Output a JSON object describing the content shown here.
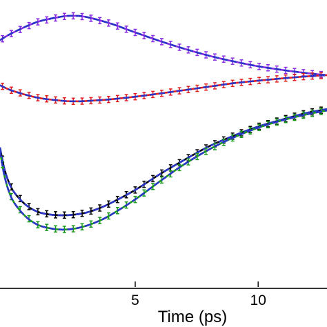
{
  "chart_data": {
    "type": "line",
    "xlabel": "Time (ps)",
    "xlim": [
      -0.5,
      12.8
    ],
    "ylim": [
      0,
      1
    ],
    "x_ticks": [
      {
        "value": 5,
        "label": "5"
      },
      {
        "value": 10,
        "label": "10"
      }
    ],
    "grid": false,
    "legend": "none",
    "series": [
      {
        "color": "#8a2be2",
        "fit_color": "#2a35c8",
        "x": [
          -0.5,
          0,
          1,
          2,
          2.5,
          3,
          4,
          5,
          6,
          7,
          8,
          9,
          10,
          11,
          12,
          12.8
        ],
        "y": [
          0.86,
          0.885,
          0.923,
          0.942,
          0.945,
          0.941,
          0.918,
          0.887,
          0.857,
          0.83,
          0.806,
          0.786,
          0.769,
          0.756,
          0.745,
          0.738
        ]
      },
      {
        "color": "#e02020",
        "fit_color": "#2a35c8",
        "x": [
          -0.5,
          0,
          1,
          2,
          2.5,
          3,
          4,
          5,
          6,
          7,
          8,
          9,
          10,
          11,
          12,
          12.8
        ],
        "y": [
          0.703,
          0.684,
          0.66,
          0.649,
          0.647,
          0.648,
          0.654,
          0.663,
          0.674,
          0.686,
          0.698,
          0.71,
          0.719,
          0.727,
          0.734,
          0.738
        ]
      },
      {
        "color": "#000000",
        "fit_color": "#2a35c8",
        "x": [
          -0.5,
          -0.3,
          0,
          0.5,
          1,
          1.5,
          2,
          2.5,
          3,
          3.5,
          4,
          5,
          6,
          7,
          8,
          9,
          10,
          11,
          12,
          12.8
        ],
        "y": [
          0.486,
          0.405,
          0.34,
          0.29,
          0.263,
          0.253,
          0.25,
          0.252,
          0.259,
          0.273,
          0.292,
          0.338,
          0.393,
          0.443,
          0.49,
          0.527,
          0.559,
          0.584,
          0.607,
          0.62
        ]
      },
      {
        "color": "#1a9a1a",
        "fit_color": "#2a35c8",
        "x": [
          -0.5,
          -0.3,
          0,
          0.5,
          1,
          1.5,
          2,
          2.5,
          3,
          3.5,
          4,
          5,
          6,
          7,
          8,
          9,
          10,
          11,
          12,
          12.8
        ],
        "y": [
          0.473,
          0.38,
          0.305,
          0.249,
          0.218,
          0.205,
          0.2,
          0.203,
          0.213,
          0.229,
          0.251,
          0.305,
          0.368,
          0.428,
          0.479,
          0.521,
          0.555,
          0.581,
          0.602,
          0.615
        ]
      }
    ]
  }
}
